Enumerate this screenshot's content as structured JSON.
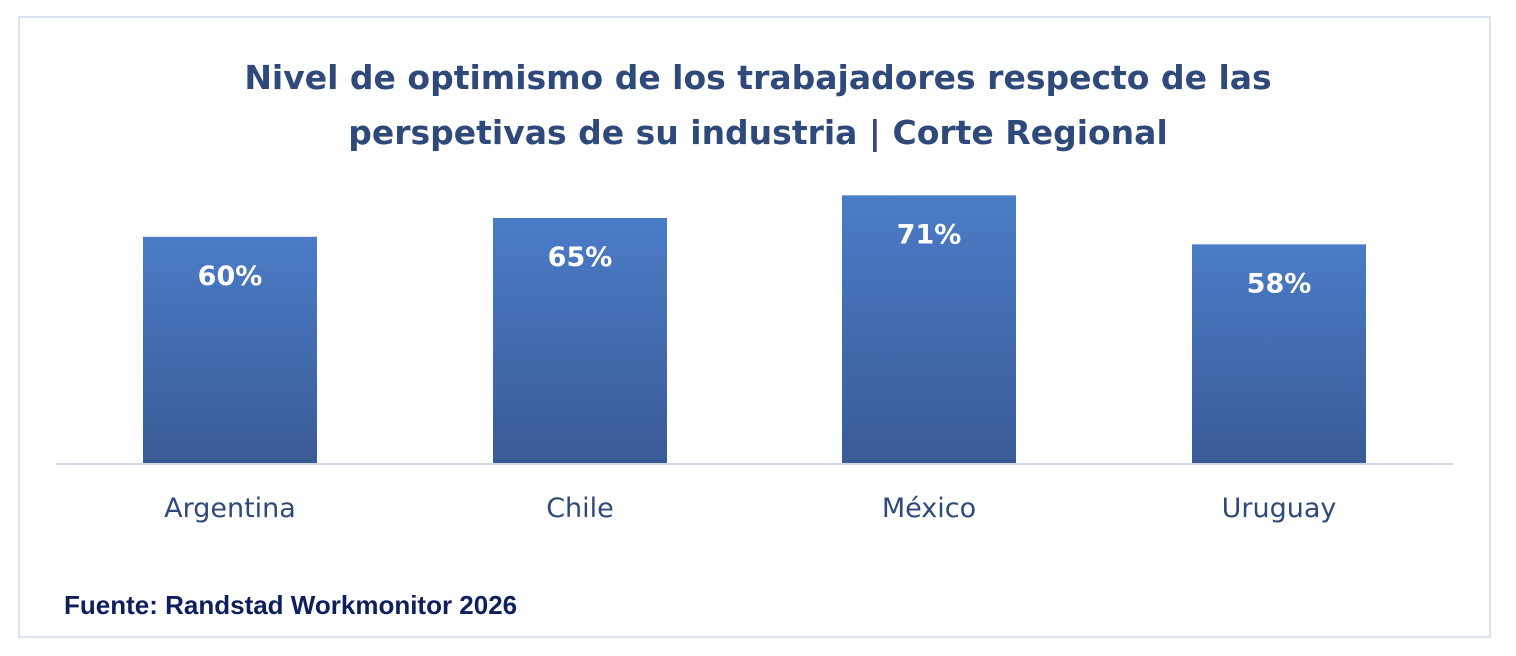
{
  "chart_data": {
    "type": "bar",
    "title_lines": [
      "Nivel de optimismo de los trabajadores respecto de las",
      "perspetivas de su industria | Corte Regional"
    ],
    "categories": [
      "Argentina",
      "Chile",
      "México",
      "Uruguay"
    ],
    "values": [
      60,
      65,
      71,
      58
    ],
    "value_labels": [
      "60%",
      "65%",
      "71%",
      "58%"
    ],
    "ylim": [
      0,
      100
    ],
    "grid": false,
    "legend": "none",
    "colors": {
      "bar_top": "#4a7cc7",
      "bar_bottom": "#3a5b96",
      "title": "#2f4a7a",
      "axis": "#d0d8e6",
      "source": "#0f1f5c"
    }
  },
  "source": "Fuente: Randstad Workmonitor 2026"
}
